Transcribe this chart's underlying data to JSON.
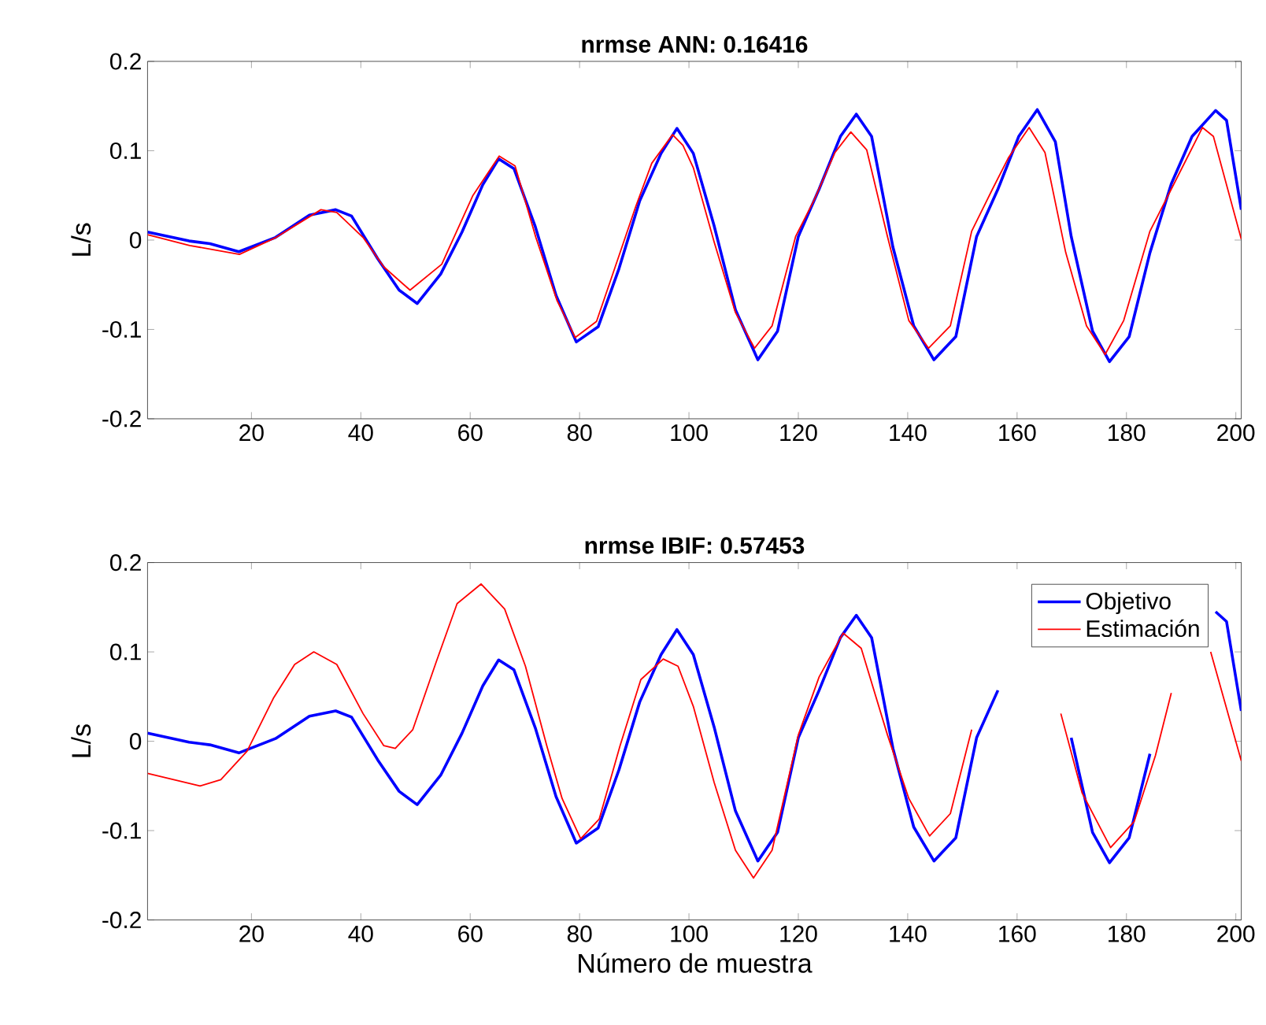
{
  "chart_data": [
    {
      "type": "line",
      "title": "nrmse ANN: 0.16416",
      "ylabel": "L/s",
      "xlim": [
        1,
        201
      ],
      "ylim": [
        -0.2,
        0.2
      ],
      "xticks": [
        20,
        40,
        60,
        80,
        100,
        120,
        140,
        160,
        180,
        200
      ],
      "yticks": [
        -0.2,
        -0.1,
        0,
        0.1,
        0.2
      ],
      "marker": "none",
      "line_style": "solid",
      "series": [
        {
          "color": "#0000ff",
          "x": [
            1,
            8.6,
            12.4,
            17.7,
            24.4,
            30.6,
            35.4,
            38.3,
            43.1,
            47,
            50.3,
            54.6,
            58.5,
            62.3,
            65.2,
            68,
            71.9,
            75.7,
            79.4,
            83.4,
            87.2,
            91,
            94.9,
            97.8,
            100.8,
            104.6,
            108.5,
            112.6,
            116.2,
            120,
            123.8,
            127.7,
            130.6,
            133.4,
            137.3,
            141.1,
            144.8,
            148.8,
            152.6,
            156.5,
            160.3,
            163.7,
            167,
            169.9,
            173.8,
            176.9,
            180.5,
            184.3,
            188.2,
            192,
            196.3,
            198.3,
            201
          ],
          "values": [
            0.009,
            -0.001,
            -0.004,
            -0.013,
            0.003,
            0.028,
            0.034,
            0.027,
            -0.021,
            -0.056,
            -0.071,
            -0.038,
            0.009,
            0.062,
            0.091,
            0.08,
            0.015,
            -0.062,
            -0.114,
            -0.097,
            -0.032,
            0.044,
            0.097,
            0.125,
            0.097,
            0.016,
            -0.078,
            -0.134,
            -0.102,
            0.004,
            0.057,
            0.116,
            0.141,
            0.116,
            -0.008,
            -0.096,
            -0.134,
            -0.108,
            0.004,
            0.057,
            0.116,
            0.146,
            0.11,
            0.004,
            -0.102,
            -0.136,
            -0.108,
            -0.014,
            0.063,
            0.116,
            0.145,
            0.134,
            0.034
          ]
        },
        {
          "color": "#ff0000",
          "x": [
            1,
            8.7,
            17.8,
            24.5,
            32.7,
            35.6,
            40.4,
            44.2,
            49,
            54.8,
            60.5,
            65.3,
            68.2,
            72,
            75.9,
            79.2,
            83.1,
            86.4,
            90.3,
            93.2,
            97,
            98.9,
            100.8,
            104.6,
            108.5,
            112,
            115.2,
            119.5,
            122.9,
            126.7,
            129.6,
            132.5,
            136.3,
            140.2,
            143.8,
            147.8,
            151.7,
            155.5,
            158.4,
            162.2,
            165.1,
            168.9,
            172.7,
            176.1,
            179.5,
            184.3,
            188.2,
            193.9,
            195.9,
            201
          ],
          "values": [
            0.006,
            -0.006,
            -0.016,
            0.003,
            0.034,
            0.031,
            0.003,
            -0.03,
            -0.056,
            -0.027,
            0.05,
            0.094,
            0.083,
            0.003,
            -0.068,
            -0.109,
            -0.091,
            -0.032,
            0.038,
            0.086,
            0.118,
            0.106,
            0.081,
            -0.002,
            -0.081,
            -0.121,
            -0.096,
            0.004,
            0.045,
            0.098,
            0.121,
            0.101,
            0.004,
            -0.09,
            -0.121,
            -0.096,
            0.01,
            0.057,
            0.092,
            0.126,
            0.098,
            -0.014,
            -0.096,
            -0.128,
            -0.09,
            0.01,
            0.057,
            0.126,
            0.116,
            0.001
          ]
        }
      ]
    },
    {
      "type": "line",
      "title": "nrmse IBIF: 0.57453",
      "xlabel": "Número de muestra",
      "ylabel": "L/s",
      "xlim": [
        1,
        201
      ],
      "ylim": [
        -0.2,
        0.2
      ],
      "xticks": [
        20,
        40,
        60,
        80,
        100,
        120,
        140,
        160,
        180,
        200
      ],
      "yticks": [
        -0.2,
        -0.1,
        0,
        0.1,
        0.2
      ],
      "marker": "none",
      "line_style": "solid",
      "legend": "top right",
      "series": [
        {
          "name": "Objetivo",
          "color": "#0000ff",
          "x": [
            1,
            8.6,
            12.4,
            17.7,
            24.4,
            30.6,
            35.4,
            38.3,
            43.1,
            47,
            50.3,
            54.6,
            58.5,
            62.3,
            65.2,
            68,
            71.9,
            75.7,
            79.4,
            83.4,
            87.2,
            91,
            94.9,
            97.8,
            100.8,
            104.6,
            108.5,
            112.6,
            116.2,
            120,
            123.8,
            127.7,
            130.6,
            133.4,
            137.3,
            141.1,
            144.8,
            148.8,
            152.6,
            156.5,
            160.3,
            163.7,
            167,
            169.9,
            173.8,
            176.9,
            180.5,
            184.3,
            188.2,
            192,
            196.3,
            198.3,
            201
          ],
          "values": [
            0.009,
            -0.001,
            -0.004,
            -0.013,
            0.003,
            0.028,
            0.034,
            0.027,
            -0.021,
            -0.056,
            -0.071,
            -0.038,
            0.009,
            0.062,
            0.091,
            0.08,
            0.015,
            -0.062,
            -0.114,
            -0.097,
            -0.032,
            0.044,
            0.097,
            0.125,
            0.097,
            0.016,
            -0.078,
            -0.134,
            -0.102,
            0.004,
            0.057,
            0.116,
            0.141,
            0.116,
            -0.008,
            -0.096,
            -0.134,
            -0.108,
            0.004,
            0.057,
            null,
            null,
            null,
            0.004,
            -0.102,
            -0.136,
            -0.108,
            -0.014,
            null,
            null,
            0.145,
            0.134,
            0.034
          ]
        },
        {
          "name": "Estimación",
          "color": "#ff0000",
          "x": [
            1,
            5.8,
            10.6,
            14.4,
            19.2,
            24,
            27.9,
            31.4,
            35.6,
            40.4,
            44.2,
            46.3,
            49.5,
            53.8,
            57.6,
            62,
            66.3,
            70.1,
            74,
            76.8,
            80.2,
            83.6,
            87.4,
            91.2,
            95.3,
            98,
            100.8,
            104.6,
            108.5,
            111.8,
            115.2,
            120,
            123.8,
            128.2,
            131.5,
            136.3,
            140.2,
            144,
            147.8,
            151.7,
            153.6,
            160,
            168,
            171.9,
            177.1,
            181.4,
            185.3,
            188.2,
            190.6,
            195.4,
            201
          ],
          "values": [
            -0.036,
            -0.043,
            -0.05,
            -0.043,
            -0.011,
            0.048,
            0.086,
            0.1,
            0.086,
            0.031,
            -0.005,
            -0.008,
            0.013,
            0.089,
            0.154,
            0.176,
            0.148,
            0.084,
            -0.005,
            -0.064,
            -0.109,
            -0.087,
            -0.005,
            0.069,
            0.092,
            0.084,
            0.039,
            -0.046,
            -0.122,
            -0.153,
            -0.122,
            0.007,
            0.072,
            0.121,
            0.104,
            0.007,
            -0.064,
            -0.106,
            -0.081,
            0.013,
            null,
            null,
            0.031,
            -0.058,
            -0.119,
            -0.09,
            -0.016,
            0.054,
            null,
            0.1,
            -0.022
          ]
        }
      ]
    }
  ]
}
